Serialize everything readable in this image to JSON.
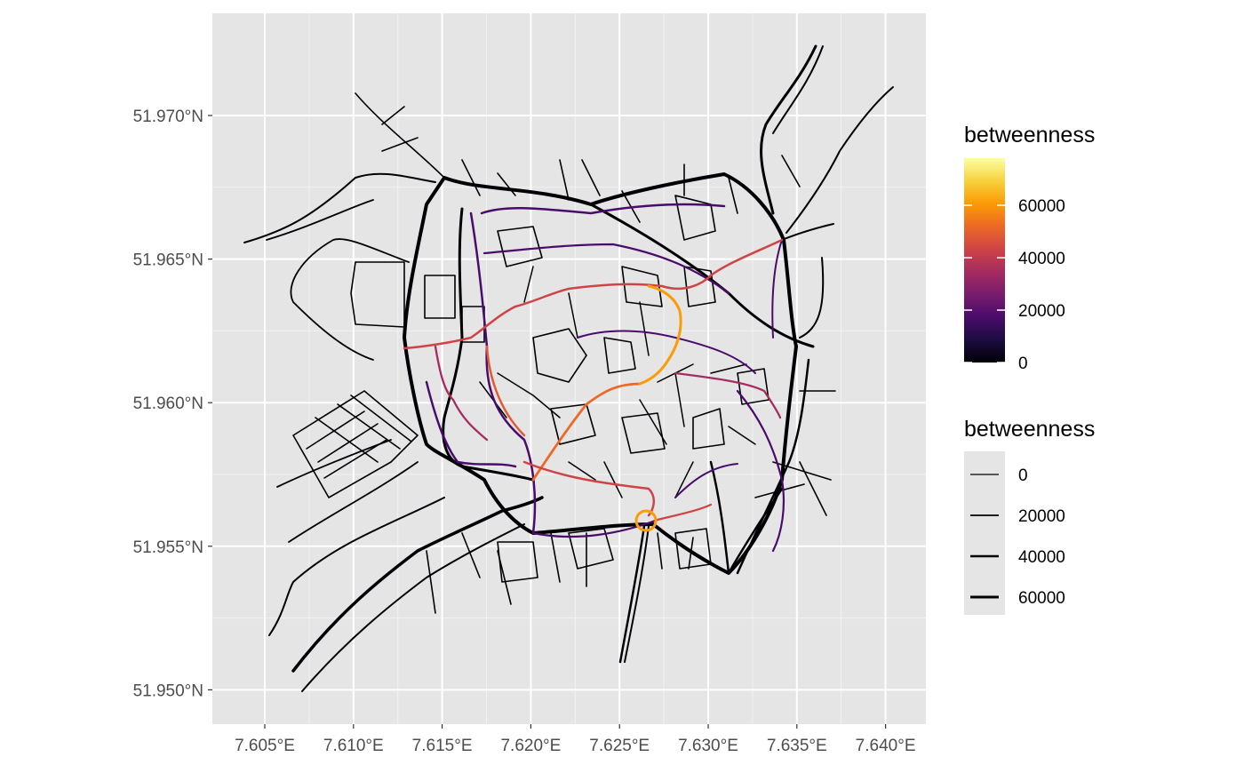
{
  "map": {
    "x_axis": {
      "tick_labels": [
        "7.605°E",
        "7.610°E",
        "7.615°E",
        "7.620°E",
        "7.625°E",
        "7.630°E",
        "7.635°E",
        "7.640°E"
      ],
      "tick_values": [
        7.605,
        7.61,
        7.615,
        7.62,
        7.625,
        7.63,
        7.635,
        7.64
      ]
    },
    "y_axis": {
      "tick_labels": [
        "51.970°N",
        "51.965°N",
        "51.960°N",
        "51.955°N",
        "51.950°N"
      ],
      "tick_values": [
        51.97,
        51.965,
        51.96,
        51.955,
        51.95
      ]
    },
    "colors": {
      "panel_background": "#e5e5e5",
      "gridline": "#ffffff",
      "network_low": "#000004",
      "network_mid": "#8c2981",
      "network_high": "#fcfdbf"
    }
  },
  "legend_color": {
    "title": "betweenness",
    "labels": [
      "60000",
      "40000",
      "20000",
      "0"
    ],
    "values": [
      60000,
      40000,
      20000,
      0
    ],
    "max": 78000,
    "palette": "inferno",
    "stops": [
      "#000004",
      "#1b0c41",
      "#4a0c6b",
      "#781c6d",
      "#a52c60",
      "#cf4446",
      "#ed6925",
      "#fb9b06",
      "#f7d13d",
      "#fcffa4"
    ]
  },
  "legend_size": {
    "title": "betweenness",
    "labels": [
      "0",
      "20000",
      "40000",
      "60000"
    ]
  }
}
